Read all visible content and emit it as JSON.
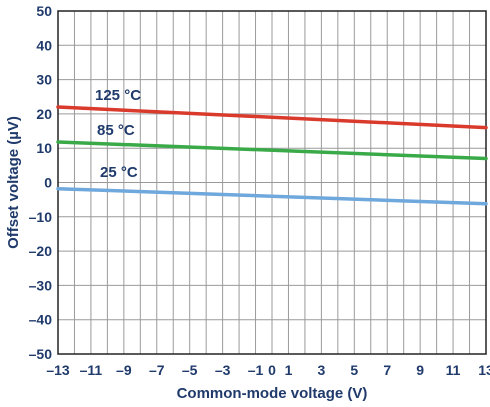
{
  "chart_data": {
    "type": "line",
    "xlabel": "Common-mode voltage (V)",
    "ylabel": "Offset voltage (µV)",
    "xlim": [
      -13,
      13
    ],
    "ylim": [
      -50,
      50
    ],
    "x_ticks": [
      -13,
      -11,
      -9,
      -7,
      -5,
      -3,
      -1,
      0,
      1,
      3,
      5,
      7,
      9,
      11,
      13
    ],
    "x_tick_labels": [
      "–13",
      "–11",
      "–9",
      "–7",
      "–5",
      "–3",
      "–1",
      "0",
      "1",
      "3",
      "5",
      "7",
      "9",
      "11",
      "13"
    ],
    "y_ticks": [
      -50,
      -40,
      -30,
      -20,
      -10,
      0,
      10,
      20,
      30,
      40,
      50
    ],
    "y_tick_labels": [
      "–50",
      "–40",
      "–30",
      "–20",
      "–10",
      "0",
      "10",
      "20",
      "30",
      "40",
      "50"
    ],
    "grid": true,
    "series": [
      {
        "name": "125 °C",
        "color": "#d93a2b",
        "x": [
          -13,
          13
        ],
        "y": [
          22,
          16
        ]
      },
      {
        "name": "85 °C",
        "color": "#3aaa48",
        "x": [
          -13,
          13
        ],
        "y": [
          11.8,
          7
        ]
      },
      {
        "name": "25 °C",
        "color": "#6fa8dc",
        "x": [
          -13,
          13
        ],
        "y": [
          -1.8,
          -6.2
        ]
      }
    ]
  }
}
